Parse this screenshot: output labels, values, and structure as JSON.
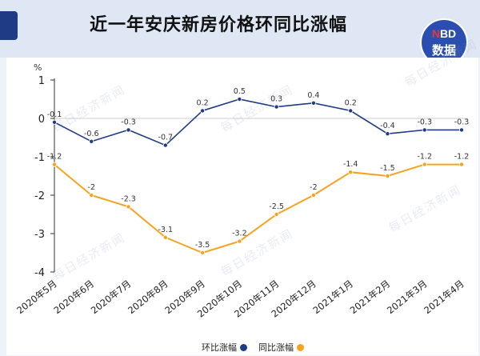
{
  "header": {
    "title": "近一年安庆新房价格环同比涨幅"
  },
  "logo": {
    "top_n": "N",
    "top_rest": "BD",
    "bottom": "数据"
  },
  "watermark_text": "每日经济新闻",
  "colors": {
    "hb": "#1f3b86",
    "tb": "#f5a31f",
    "brand": "#2b4fb0"
  },
  "chart_data": {
    "type": "line",
    "title": "近一年安庆新房价格环同比涨幅",
    "ylabel": "%",
    "ylim": [
      -4,
      1
    ],
    "yticks": [
      1,
      0,
      -1,
      -2,
      -3,
      -4
    ],
    "grid": false,
    "legend_position": "bottom-center",
    "categories": [
      "2020年5月",
      "2020年6月",
      "2020年7月",
      "2020年8月",
      "2020年9月",
      "2020年10月",
      "2020年11月",
      "2020年12月",
      "2021年1月",
      "2021年2月",
      "2021年3月",
      "2021年4月"
    ],
    "series": [
      {
        "name": "环比涨幅",
        "color": "#1f3b86",
        "values": [
          -0.1,
          -0.6,
          -0.3,
          -0.7,
          0.2,
          0.5,
          0.3,
          0.4,
          0.2,
          -0.4,
          -0.3,
          -0.3
        ]
      },
      {
        "name": "同比涨幅",
        "color": "#f5a31f",
        "values": [
          -1.2,
          -2,
          -2.3,
          -3.1,
          -3.5,
          -3.2,
          -2.5,
          -2,
          -1.4,
          -1.5,
          -1.2,
          -1.2
        ]
      }
    ]
  }
}
